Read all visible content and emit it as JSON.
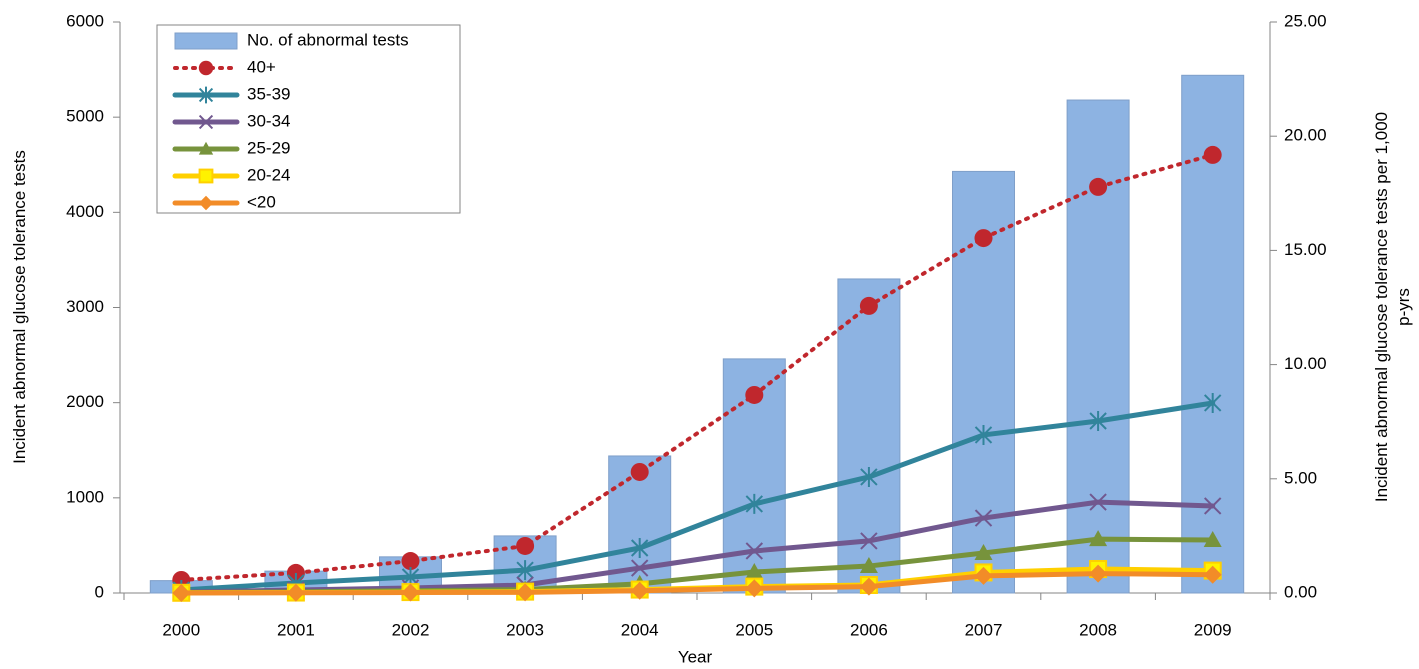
{
  "chart_data": {
    "type": "bar",
    "x_label": "Year",
    "y_label": "Incident abnormal glucose tolerance tests",
    "y2_label": "Incident abnormal glucose tolerance tests per 1,000 p-yrs",
    "categories": [
      "2000",
      "2001",
      "2002",
      "2003",
      "2004",
      "2005",
      "2006",
      "2007",
      "2008",
      "2009"
    ],
    "ylim": [
      0,
      6000
    ],
    "yticks": [
      0,
      1000,
      2000,
      3000,
      4000,
      5000,
      6000
    ],
    "y2lim": [
      0,
      25
    ],
    "y2ticks": [
      {
        "value": 0,
        "label": "0.00"
      },
      {
        "value": 5,
        "label": "5.00"
      },
      {
        "value": 10,
        "label": "10.00"
      },
      {
        "value": 15,
        "label": "15.00"
      },
      {
        "value": 20,
        "label": "20.00"
      },
      {
        "value": 25,
        "label": "25.00"
      }
    ],
    "legend": "upper left",
    "series": [
      {
        "name": "No. of abnormal tests",
        "type": "bar",
        "axis": "y",
        "color": "#8db3e2",
        "values": [
          130,
          230,
          380,
          600,
          1440,
          2460,
          3300,
          4430,
          5180,
          5440
        ]
      },
      {
        "name": "40+",
        "type": "line",
        "axis": "y2",
        "color": "#c0272d",
        "dash": "dotted",
        "marker": "circle",
        "values": [
          0.57,
          0.88,
          1.4,
          2.06,
          5.3,
          8.67,
          12.57,
          15.54,
          17.78,
          19.18
        ]
      },
      {
        "name": "35-39",
        "type": "line",
        "axis": "y2",
        "color": "#31849b",
        "marker": "asterisk",
        "values": [
          0.13,
          0.44,
          0.7,
          1.0,
          1.97,
          3.9,
          5.08,
          6.92,
          7.53,
          8.32
        ]
      },
      {
        "name": "30-34",
        "type": "line",
        "axis": "y2",
        "color": "#71588f",
        "marker": "x",
        "values": [
          0.04,
          0.13,
          0.22,
          0.35,
          1.09,
          1.84,
          2.28,
          3.28,
          3.98,
          3.81
        ]
      },
      {
        "name": "25-29",
        "type": "line",
        "axis": "y2",
        "color": "#77933c",
        "marker": "triangle",
        "values": [
          0.02,
          0.05,
          0.1,
          0.15,
          0.4,
          0.92,
          1.18,
          1.75,
          2.36,
          2.32
        ]
      },
      {
        "name": "20-24",
        "type": "line",
        "axis": "y2",
        "color": "#ffd000",
        "marker": "square",
        "values": [
          0.01,
          0.02,
          0.04,
          0.06,
          0.15,
          0.28,
          0.35,
          0.9,
          1.05,
          0.98
        ]
      },
      {
        "name": "<20",
        "type": "line",
        "axis": "y2",
        "color": "#f28c28",
        "marker": "diamond",
        "values": [
          0.0,
          0.01,
          0.02,
          0.03,
          0.1,
          0.2,
          0.28,
          0.75,
          0.85,
          0.8
        ]
      }
    ]
  }
}
